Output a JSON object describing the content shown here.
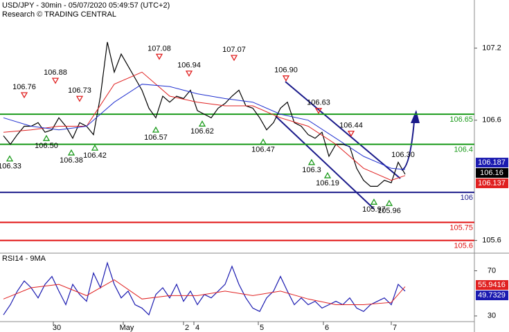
{
  "chart_data": [
    {
      "type": "line",
      "title": "USD/JPY - 30min - 05/07/2020 05:49:57 (UTC+2)",
      "subtitle": "Research © TRADING CENTRAL",
      "xlim": [
        -0.5,
        68
      ],
      "ylim": [
        105.5,
        107.6
      ],
      "yticks": [
        107.2,
        106.6,
        105.6
      ],
      "series": [
        {
          "color": "#000000",
          "x": [
            0,
            1,
            2,
            3,
            4,
            5,
            6,
            7,
            8,
            9,
            10,
            11,
            12,
            13,
            14,
            15,
            16,
            17,
            18,
            19,
            20,
            21,
            22,
            23,
            24,
            25,
            26,
            27,
            28,
            29,
            30,
            31,
            32,
            33,
            34,
            35,
            36,
            37,
            38,
            39,
            40,
            41,
            42,
            43,
            44,
            45,
            46,
            47,
            48,
            49,
            50,
            51,
            52,
            53,
            54,
            55,
            56,
            57,
            58
          ],
          "values": [
            106.47,
            106.4,
            106.48,
            106.55,
            106.55,
            106.58,
            106.5,
            106.52,
            106.62,
            106.55,
            106.45,
            106.58,
            106.55,
            106.48,
            106.8,
            107.25,
            107.0,
            107.15,
            107.05,
            106.95,
            106.85,
            106.7,
            106.62,
            106.8,
            106.75,
            106.8,
            106.78,
            106.85,
            106.68,
            106.65,
            106.62,
            106.7,
            106.74,
            106.8,
            106.85,
            106.72,
            106.7,
            106.62,
            106.52,
            106.58,
            106.7,
            106.75,
            106.58,
            106.55,
            106.48,
            106.45,
            106.5,
            106.3,
            106.4,
            106.4,
            106.38,
            106.2,
            106.1,
            106.05,
            106.05,
            106.1,
            106.08,
            106.25,
            106.15
          ]
        },
        {
          "color": "#e02020",
          "x": [
            0,
            4,
            8,
            12,
            16,
            20,
            24,
            28,
            32,
            36,
            40,
            44,
            48,
            52,
            56,
            58
          ],
          "values": [
            106.5,
            106.52,
            106.55,
            106.55,
            106.9,
            107.0,
            106.8,
            106.75,
            106.72,
            106.72,
            106.62,
            106.55,
            106.4,
            106.2,
            106.1,
            106.14
          ]
        },
        {
          "color": "#2030d0",
          "x": [
            0,
            4,
            8,
            12,
            16,
            20,
            24,
            28,
            32,
            36,
            40,
            44,
            48,
            52,
            56,
            58
          ],
          "values": [
            106.62,
            106.55,
            106.52,
            106.55,
            106.75,
            106.9,
            106.88,
            106.82,
            106.78,
            106.75,
            106.65,
            106.6,
            106.45,
            106.3,
            106.2,
            106.19
          ]
        }
      ],
      "levels": [
        {
          "value": 106.65,
          "color": "#1a9a1a"
        },
        {
          "value": 106.4,
          "color": "#1a9a1a"
        },
        {
          "value": 106,
          "color": "#1a1a8a"
        },
        {
          "value": 105.75,
          "color": "#e01010"
        },
        {
          "value": 105.6,
          "color": "#e01010"
        }
      ],
      "annotations": [
        {
          "x": 3,
          "value": 106.76,
          "label": "106.76",
          "marker": "down"
        },
        {
          "x": 7.5,
          "value": 106.88,
          "label": "106.88",
          "marker": "down"
        },
        {
          "x": 11,
          "value": 106.73,
          "label": "106.73",
          "marker": "down"
        },
        {
          "x": 22.5,
          "value": 107.08,
          "label": "107.08",
          "marker": "down"
        },
        {
          "x": 26.8,
          "value": 106.94,
          "label": "106.94",
          "marker": "down"
        },
        {
          "x": 33.3,
          "value": 107.07,
          "label": "107.07",
          "marker": "down"
        },
        {
          "x": 40.8,
          "value": 106.9,
          "label": "106.90",
          "marker": "down"
        },
        {
          "x": 45.5,
          "value": 106.63,
          "label": "106.63",
          "marker": "down"
        },
        {
          "x": 50.2,
          "value": 106.44,
          "label": "106.44",
          "marker": "down"
        },
        {
          "x": 57.7,
          "value": 106.3,
          "label": "106.30",
          "marker": "none"
        },
        {
          "x": 0.9,
          "value": 106.33,
          "label": "106.33",
          "marker": "up"
        },
        {
          "x": 6.2,
          "value": 106.5,
          "label": "106.50",
          "marker": "up"
        },
        {
          "x": 9.8,
          "value": 106.38,
          "label": "106.38",
          "marker": "up"
        },
        {
          "x": 13.2,
          "value": 106.42,
          "label": "106.42",
          "marker": "up"
        },
        {
          "x": 22,
          "value": 106.57,
          "label": "106.57",
          "marker": "up"
        },
        {
          "x": 28.7,
          "value": 106.62,
          "label": "106.62",
          "marker": "up"
        },
        {
          "x": 37.5,
          "value": 106.47,
          "label": "106.47",
          "marker": "up"
        },
        {
          "x": 44.5,
          "value": 106.3,
          "label": "106.3",
          "marker": "up"
        },
        {
          "x": 46.8,
          "value": 106.19,
          "label": "106.19",
          "marker": "up"
        },
        {
          "x": 53.5,
          "value": 105.97,
          "label": "105.97",
          "marker": "up"
        },
        {
          "x": 55.7,
          "value": 105.96,
          "label": "105.96",
          "marker": "up"
        }
      ],
      "price_tags": [
        {
          "value": 106.187,
          "color": "#1a1ab0"
        },
        {
          "value": 106.16,
          "color": "#000000"
        },
        {
          "value": 106.137,
          "color": "#e02020"
        }
      ]
    },
    {
      "type": "line",
      "title": "RSI14 - 9MA",
      "xlim": [
        -0.5,
        68
      ],
      "ylim": [
        25,
        85
      ],
      "yticks": [
        70,
        30
      ],
      "xticks": [
        {
          "value": 7.2,
          "label": "30"
        },
        {
          "value": 17.3,
          "label": "May"
        },
        {
          "value": 26,
          "label": "2"
        },
        {
          "value": 27.5,
          "label": "4"
        },
        {
          "value": 36.8,
          "label": "5"
        },
        {
          "value": 46.2,
          "label": "6"
        },
        {
          "value": 56,
          "label": "7"
        }
      ],
      "series": [
        {
          "color": "#1a1ab0",
          "x": [
            0,
            1,
            2,
            3,
            4,
            5,
            6,
            7,
            8,
            9,
            10,
            11,
            12,
            13,
            14,
            15,
            16,
            17,
            18,
            19,
            20,
            21,
            22,
            23,
            24,
            25,
            26,
            27,
            28,
            29,
            30,
            31,
            32,
            33,
            34,
            35,
            36,
            37,
            38,
            39,
            40,
            41,
            42,
            43,
            44,
            45,
            46,
            47,
            48,
            49,
            50,
            51,
            52,
            53,
            54,
            55,
            56,
            57,
            58
          ],
          "values": [
            31,
            40,
            52,
            61,
            55,
            46,
            58,
            65,
            52,
            40,
            58,
            49,
            43,
            68,
            55,
            77,
            58,
            46,
            52,
            40,
            37,
            31,
            49,
            55,
            46,
            58,
            43,
            52,
            40,
            49,
            46,
            52,
            58,
            74,
            58,
            46,
            37,
            34,
            46,
            52,
            65,
            52,
            40,
            46,
            40,
            43,
            37,
            40,
            43,
            40,
            46,
            37,
            34,
            40,
            43,
            46,
            40,
            58,
            52
          ]
        },
        {
          "color": "#e02020",
          "x": [
            0,
            4,
            8,
            12,
            16,
            20,
            24,
            28,
            32,
            36,
            40,
            44,
            48,
            52,
            56,
            58
          ],
          "values": [
            45,
            55,
            58,
            48,
            62,
            45,
            48,
            48,
            52,
            48,
            52,
            45,
            40,
            40,
            42,
            56
          ]
        }
      ],
      "price_tags": [
        {
          "value": 55.9416,
          "color": "#e02020"
        },
        {
          "value": 49.7329,
          "color": "#1a1ab0"
        }
      ]
    }
  ]
}
